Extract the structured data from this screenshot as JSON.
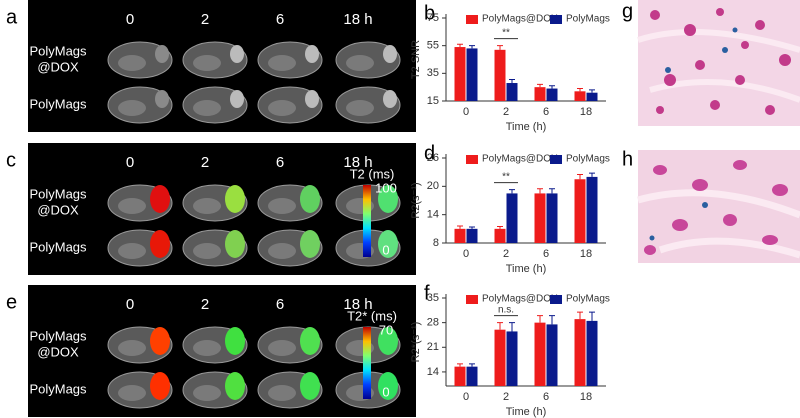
{
  "image_panels": [
    {
      "panel": "a",
      "columns": [
        "0",
        "2",
        "6",
        "18 h"
      ],
      "row_labels": [
        [
          "PolyMags",
          "@DOX"
        ],
        [
          "PolyMags"
        ]
      ]
    },
    {
      "panel": "c",
      "columns": [
        "0",
        "2",
        "6",
        "18 h"
      ],
      "row_labels": [
        [
          "PolyMags",
          "@DOX"
        ],
        [
          "PolyMags"
        ]
      ],
      "colorbar": {
        "title": "T2 (ms)",
        "max": 100,
        "min": 0
      }
    },
    {
      "panel": "e",
      "columns": [
        "0",
        "2",
        "6",
        "18 h"
      ],
      "row_labels": [
        [
          "PolyMags",
          "@DOX"
        ],
        [
          "PolyMags"
        ]
      ],
      "colorbar": {
        "title": "T2* (ms)",
        "max": 70,
        "min": 0
      }
    }
  ],
  "histology_panels": [
    "g",
    "h"
  ],
  "chart_data": [
    {
      "type": "bar",
      "panel": "b",
      "y_label": "T2 SNR",
      "x_label": "Time (h)",
      "categories": [
        "0",
        "2",
        "6",
        "18"
      ],
      "series": [
        {
          "name": "PolyMags@DOX",
          "color": "#ee1c1c",
          "values": [
            54,
            52,
            25,
            22
          ],
          "errors": [
            2,
            3,
            2,
            2
          ]
        },
        {
          "name": "PolyMags",
          "color": "#0a1a8c",
          "values": [
            53,
            28,
            24,
            21
          ],
          "errors": [
            2,
            2.5,
            2,
            2
          ]
        }
      ],
      "ylim": [
        15,
        75
      ],
      "yticks": [
        15,
        35,
        55,
        75
      ],
      "annotation": {
        "text": "**",
        "x": "2"
      }
    },
    {
      "type": "bar",
      "panel": "d",
      "y_label": "R2(s⁻¹)",
      "x_label": "Time (h)",
      "categories": [
        "0",
        "2",
        "6",
        "18"
      ],
      "series": [
        {
          "name": "PolyMags@DOX",
          "color": "#ee1c1c",
          "values": [
            11,
            11,
            18.5,
            21.5
          ],
          "errors": [
            0.6,
            0.5,
            1,
            1
          ]
        },
        {
          "name": "PolyMags",
          "color": "#0a1a8c",
          "values": [
            11,
            18.5,
            18.5,
            22
          ],
          "errors": [
            0.4,
            0.8,
            1,
            0.8
          ]
        }
      ],
      "ylim": [
        8,
        26
      ],
      "yticks": [
        8,
        14,
        20,
        26
      ],
      "annotation": {
        "text": "**",
        "x": "2"
      }
    },
    {
      "type": "bar",
      "panel": "f",
      "y_label": "R2*(s⁻¹)",
      "x_label": "Time (h)",
      "categories": [
        "0",
        "2",
        "6",
        "18"
      ],
      "series": [
        {
          "name": "PolyMags@DOX",
          "color": "#ee1c1c",
          "values": [
            15.5,
            26,
            28,
            29
          ],
          "errors": [
            0.8,
            2,
            2,
            2
          ]
        },
        {
          "name": "PolyMags",
          "color": "#0a1a8c",
          "values": [
            15.5,
            25.5,
            27.5,
            28.5
          ],
          "errors": [
            0.8,
            2.5,
            2.5,
            2.5
          ]
        }
      ],
      "ylim": [
        10,
        35
      ],
      "yticks": [
        14,
        21,
        28,
        35
      ],
      "annotation": {
        "text": "n.s.",
        "x": "2"
      }
    }
  ]
}
